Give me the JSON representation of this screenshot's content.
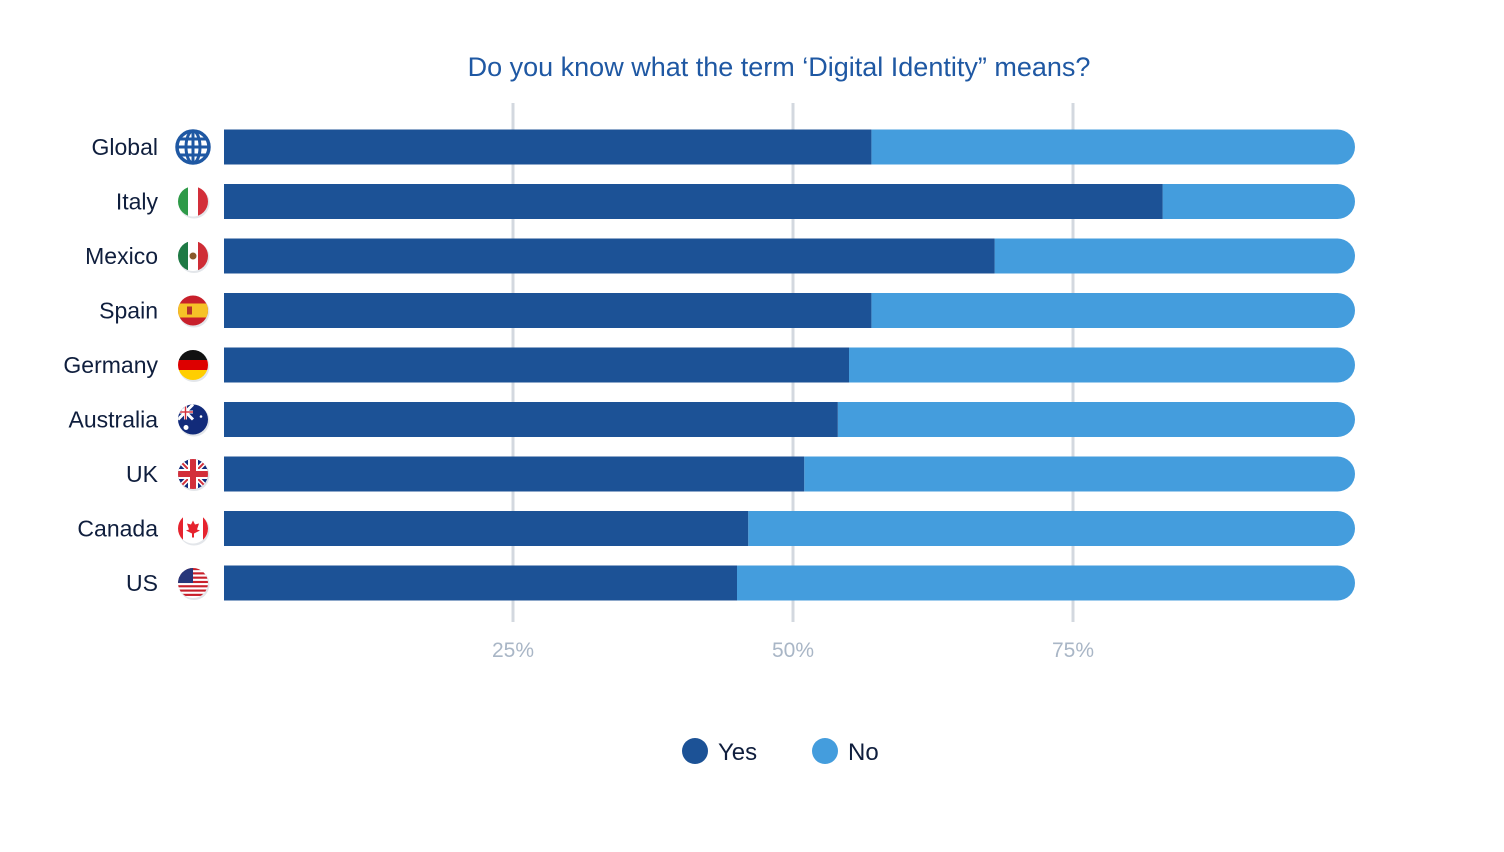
{
  "chart_data": {
    "type": "bar",
    "stacked": true,
    "orientation": "horizontal",
    "title": "Do you know what the term ‘Digital Identity” means?",
    "categories": [
      "Global",
      "Italy",
      "Mexico",
      "Spain",
      "Germany",
      "Australia",
      "UK",
      "Canada",
      "US"
    ],
    "category_icons": [
      "globe-icon",
      "italy-flag-icon",
      "mexico-flag-icon",
      "spain-flag-icon",
      "germany-flag-icon",
      "australia-flag-icon",
      "uk-flag-icon",
      "canada-flag-icon",
      "us-flag-icon"
    ],
    "series": [
      {
        "name": "Yes",
        "color": "#1c5296",
        "values": [
          57,
          83,
          68,
          57,
          55,
          54,
          51,
          46,
          45
        ]
      },
      {
        "name": "No",
        "color": "#449ddd",
        "values": [
          43,
          17,
          32,
          43,
          45,
          46,
          49,
          54,
          55
        ]
      }
    ],
    "xlim": [
      0,
      100
    ],
    "xticks": [
      25,
      50,
      75
    ],
    "xtick_labels": [
      "25%",
      "50%",
      "75%"
    ],
    "grid": true,
    "legend": "bottom-center",
    "xlabel": "",
    "ylabel": ""
  }
}
